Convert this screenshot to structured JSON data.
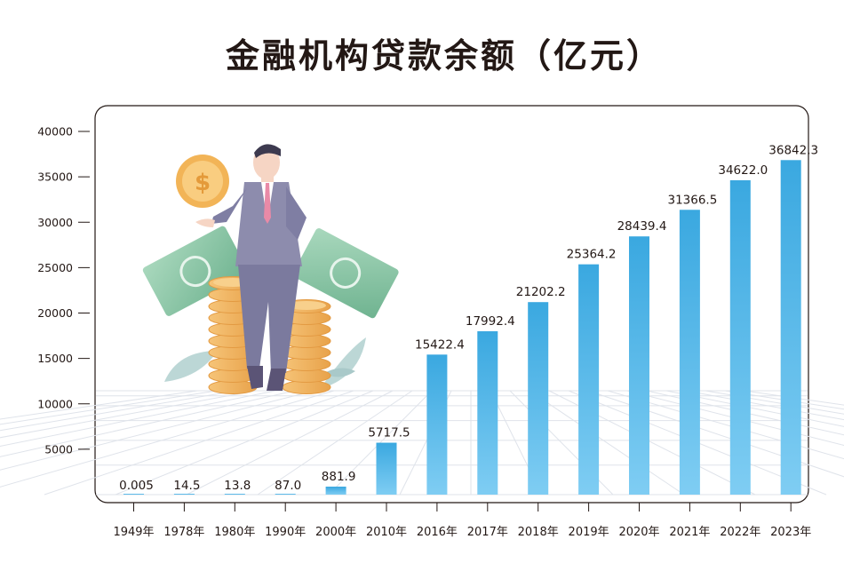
{
  "title": "金融机构贷款余额（亿元）",
  "chart_data": {
    "type": "bar",
    "title": "金融机构贷款余额（亿元）",
    "xlabel": "",
    "ylabel": "",
    "ylim": [
      0,
      40000
    ],
    "yticks": [
      5000,
      10000,
      15000,
      20000,
      25000,
      30000,
      35000,
      40000
    ],
    "grid": false,
    "categories": [
      "1949年",
      "1978年",
      "1980年",
      "1990年",
      "2000年",
      "2010年",
      "2016年",
      "2017年",
      "2018年",
      "2019年",
      "2020年",
      "2021年",
      "2022年",
      "2023年"
    ],
    "values": [
      0.005,
      14.5,
      13.8,
      87.0,
      881.9,
      5717.5,
      15422.4,
      17992.4,
      21202.2,
      25364.2,
      28439.4,
      31366.5,
      34622.0,
      36842.3
    ],
    "value_labels": [
      "0.005",
      "14.5",
      "13.8",
      "87.0",
      "881.9",
      "5717.5",
      "15422.4",
      "17992.4",
      "21202.2",
      "25364.2",
      "28439.4",
      "31366.5",
      "34622.0",
      "36842.3"
    ],
    "bar_color": "#3aa8e0"
  }
}
